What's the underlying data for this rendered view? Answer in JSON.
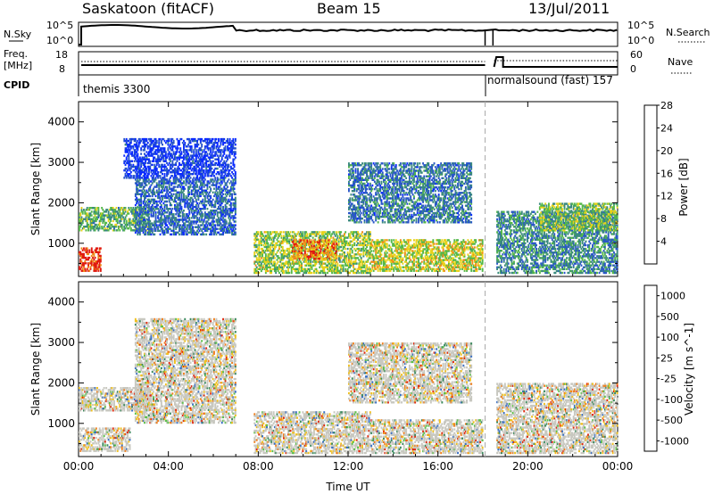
{
  "header": {
    "site": "Saskatoon (fitACF)",
    "beam": "Beam 15",
    "date": "13/Jul/2011"
  },
  "status_panel": {
    "nsky_label": "N.Sky",
    "nsky_ticks": [
      "10^5",
      "10^0"
    ],
    "nsearch_label": "N.Search",
    "nsearch_ticks": [
      "10^5",
      "10^0"
    ],
    "freq_label": "Freq.",
    "freq_unit": "[MHz]",
    "freq_ticks": [
      "18",
      "8"
    ],
    "nave_label": "Nave",
    "nave_ticks": [
      "60",
      "0"
    ],
    "cpid_label": "CPID",
    "modes": [
      {
        "name": "themis 3300",
        "start_hour": 0.0
      },
      {
        "name": "normalsound (fast) 157",
        "start_hour": 18.1
      }
    ],
    "data_gap_hour": 18.1
  },
  "chart_data": [
    {
      "type": "heatmap",
      "name": "power-panel",
      "xlabel": "",
      "ylabel": "Slant Range [km]",
      "x_ticks": [
        "00:00",
        "04:00",
        "08:00",
        "12:00",
        "16:00",
        "20:00",
        "00:00"
      ],
      "y_ticks": [
        "1000",
        "2000",
        "3000",
        "4000"
      ],
      "xlim_hours": [
        0,
        24
      ],
      "ylim_km": [
        180,
        4500
      ],
      "colorbar": {
        "label": "Power [dB]",
        "ticks": [
          "4",
          "8",
          "12",
          "16",
          "20",
          "24",
          "28"
        ],
        "colors": [
          "#0a2bff",
          "#2a57c8",
          "#3b8a7e",
          "#55b84a",
          "#e8d21a",
          "#f08a1a",
          "#e01a10"
        ]
      },
      "echo_regions": [
        {
          "t0": 0.0,
          "t1": 1.0,
          "r0": 300,
          "r1": 900,
          "level": 0.95
        },
        {
          "t0": 0.0,
          "t1": 3.2,
          "r0": 1300,
          "r1": 1900,
          "level": 0.45
        },
        {
          "t0": 2.5,
          "t1": 7.0,
          "r0": 1200,
          "r1": 2600,
          "level": 0.25
        },
        {
          "t0": 2.0,
          "t1": 7.0,
          "r0": 2600,
          "r1": 3600,
          "level": 0.12
        },
        {
          "t0": 7.8,
          "t1": 13.0,
          "r0": 250,
          "r1": 1300,
          "level": 0.55
        },
        {
          "t0": 9.5,
          "t1": 11.5,
          "r0": 600,
          "r1": 1100,
          "level": 0.8
        },
        {
          "t0": 13.0,
          "t1": 18.0,
          "r0": 300,
          "r1": 1100,
          "level": 0.6
        },
        {
          "t0": 12.0,
          "t1": 17.5,
          "r0": 1500,
          "r1": 3000,
          "level": 0.3
        },
        {
          "t0": 18.6,
          "t1": 24.0,
          "r0": 250,
          "r1": 1800,
          "level": 0.35
        },
        {
          "t0": 20.5,
          "t1": 24.0,
          "r0": 1300,
          "r1": 2000,
          "level": 0.5
        }
      ]
    },
    {
      "type": "heatmap",
      "name": "velocity-panel",
      "xlabel": "Time UT",
      "ylabel": "Slant Range [km]",
      "x_ticks": [
        "00:00",
        "04:00",
        "08:00",
        "12:00",
        "16:00",
        "20:00",
        "00:00"
      ],
      "y_ticks": [
        "1000",
        "2000",
        "3000",
        "4000"
      ],
      "xlim_hours": [
        0,
        24
      ],
      "ylim_km": [
        180,
        4500
      ],
      "colorbar": {
        "label": "Velocity [m s^-1]",
        "ticks": [
          "1000",
          "500",
          "100",
          "25",
          "-25",
          "-100",
          "-500",
          "-1000"
        ],
        "colors": [
          "#1f3fb5",
          "#3a6fc4",
          "#3b8a5e",
          "#5cc04a",
          "#c8c8c0",
          "#f0c020",
          "#f08020",
          "#e02a10"
        ]
      },
      "echo_regions": [
        {
          "t0": 0.0,
          "t1": 2.3,
          "r0": 300,
          "r1": 900,
          "level": 0.3
        },
        {
          "t0": 0.0,
          "t1": 3.2,
          "r0": 1300,
          "r1": 1900,
          "level": 0.5
        },
        {
          "t0": 2.5,
          "t1": 7.0,
          "r0": 1000,
          "r1": 3600,
          "level": 0.5
        },
        {
          "t0": 7.8,
          "t1": 13.0,
          "r0": 250,
          "r1": 1300,
          "level": 0.55
        },
        {
          "t0": 13.0,
          "t1": 18.0,
          "r0": 250,
          "r1": 1100,
          "level": 0.55
        },
        {
          "t0": 12.0,
          "t1": 17.5,
          "r0": 1500,
          "r1": 3000,
          "level": 0.5
        },
        {
          "t0": 18.6,
          "t1": 24.0,
          "r0": 250,
          "r1": 2000,
          "level": 0.5
        }
      ]
    }
  ]
}
